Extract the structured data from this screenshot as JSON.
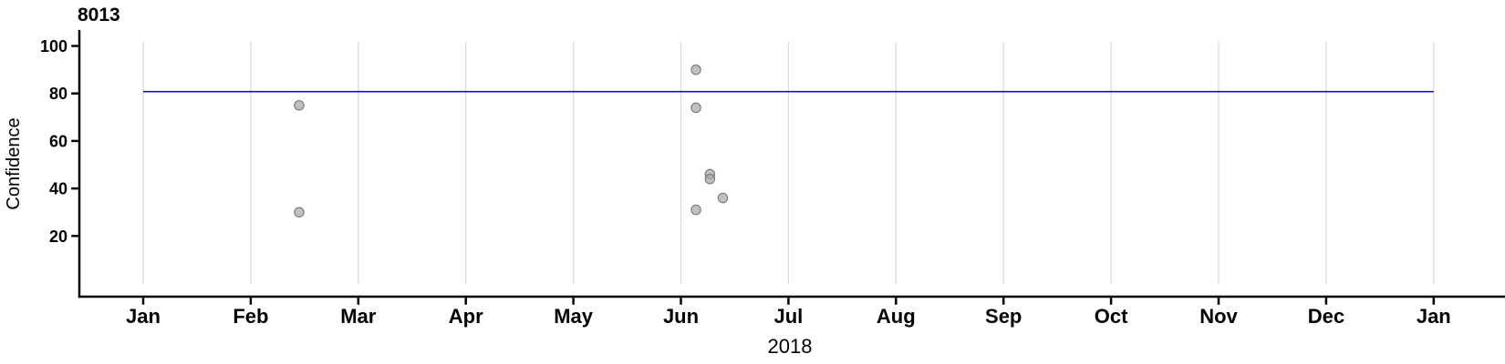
{
  "chart_data": {
    "type": "scatter",
    "title": "8013",
    "xlabel": "2018",
    "ylabel": "Confidence",
    "x_tick_labels": [
      "Jan",
      "Feb",
      "Mar",
      "Apr",
      "May",
      "Jun",
      "Jul",
      "Aug",
      "Sep",
      "Oct",
      "Nov",
      "Dec",
      "Jan"
    ],
    "y_ticks": [
      100,
      80,
      60,
      40,
      20
    ],
    "ylim": [
      -5.5,
      106.5
    ],
    "xlim_months": [
      -0.61,
      12.66
    ],
    "grid": "vertical-monthly-only",
    "legend": "none",
    "reference_line": {
      "y": 80,
      "x_start_month": 0,
      "x_end_month": 12
    },
    "points": [
      {
        "approx_date": "Feb 14",
        "x_month": 1.45,
        "y": 75
      },
      {
        "approx_date": "Feb 14",
        "x_month": 1.45,
        "y": 30
      },
      {
        "approx_date": "Jun 5",
        "x_month": 5.14,
        "y": 90
      },
      {
        "approx_date": "Jun 5",
        "x_month": 5.14,
        "y": 74
      },
      {
        "approx_date": "Jun 5",
        "x_month": 5.14,
        "y": 31
      },
      {
        "approx_date": "Jun 9",
        "x_month": 5.27,
        "y": 46
      },
      {
        "approx_date": "Jun 9",
        "x_month": 5.27,
        "y": 44
      },
      {
        "approx_date": "Jun 12",
        "x_month": 5.39,
        "y": 36
      }
    ]
  },
  "colors": {
    "reference_line": "#1212cd",
    "gridline": "#dcdcdc",
    "axis": "#000000",
    "point_fill": "rgba(168,168,168,0.72)",
    "point_stroke": "rgba(110,110,110,0.85)"
  }
}
